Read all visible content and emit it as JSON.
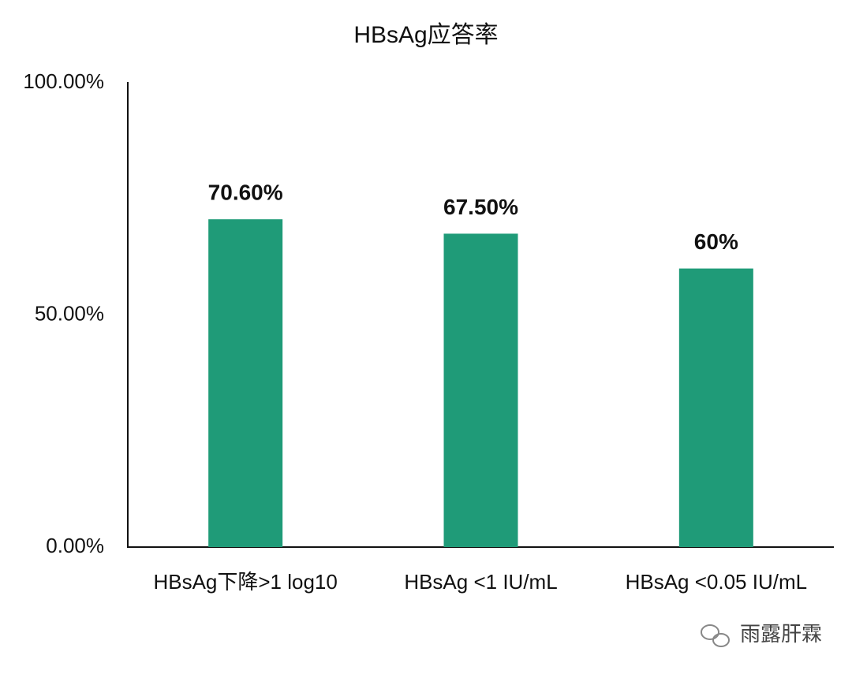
{
  "chart_data": {
    "type": "bar",
    "title": "HBsAg应答率",
    "categories": [
      "HBsAg下降>1 log10",
      "HBsAg <1 IU/mL",
      "HBsAg <0.05 IU/mL"
    ],
    "values": [
      70.6,
      67.5,
      60
    ],
    "value_labels": [
      "70.60%",
      "67.50%",
      "60%"
    ],
    "color": "#1f9b78",
    "ylim": [
      0,
      100
    ],
    "yticks": [
      {
        "value": 0,
        "label": "0.00%"
      },
      {
        "value": 50,
        "label": "50.00%"
      },
      {
        "value": 100,
        "label": "100.00%"
      }
    ],
    "grid": false,
    "watermark": "雨露肝霖"
  }
}
